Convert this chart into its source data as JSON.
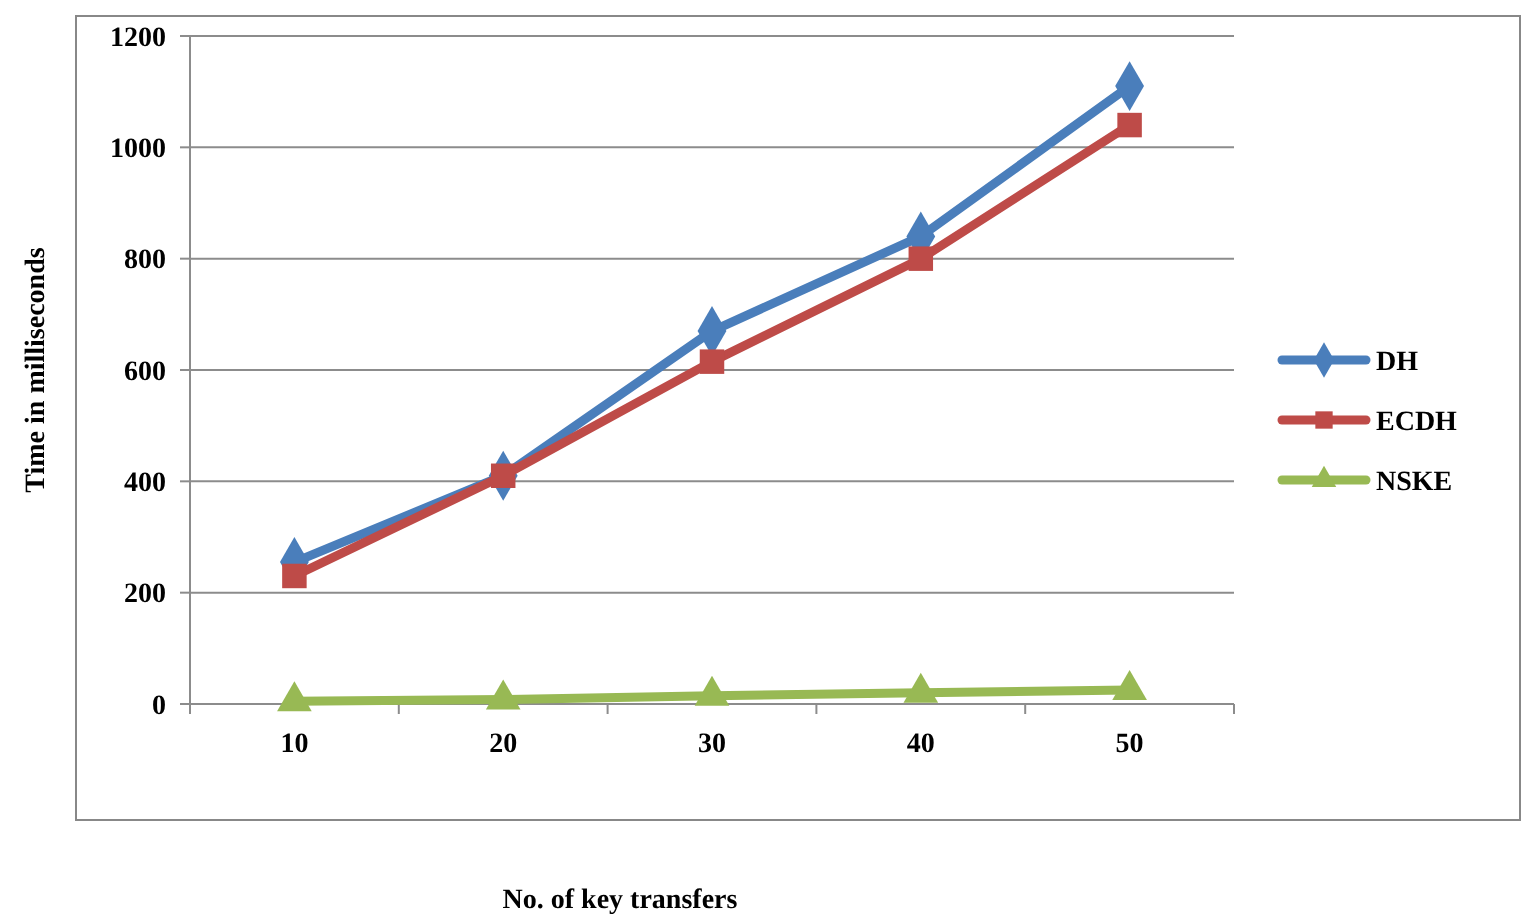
{
  "chart_data": {
    "type": "line",
    "xlabel": "No. of key transfers",
    "ylabel": "Time in milliseconds",
    "categories": [
      "10",
      "20",
      "30",
      "40",
      "50"
    ],
    "ylim": [
      0,
      1200
    ],
    "yticks": [
      0,
      200,
      400,
      600,
      800,
      1000,
      1200
    ],
    "grid": "y",
    "legend": "right",
    "series": [
      {
        "name": "DH",
        "color": "#4a7ebb",
        "marker": "diamond",
        "values": [
          255,
          410,
          670,
          840,
          1110
        ]
      },
      {
        "name": "ECDH",
        "color": "#be4b48",
        "marker": "square",
        "values": [
          230,
          410,
          615,
          800,
          1040
        ]
      },
      {
        "name": "NSKE",
        "color": "#98b954",
        "marker": "triangle",
        "values": [
          5,
          8,
          15,
          20,
          25
        ]
      }
    ]
  }
}
